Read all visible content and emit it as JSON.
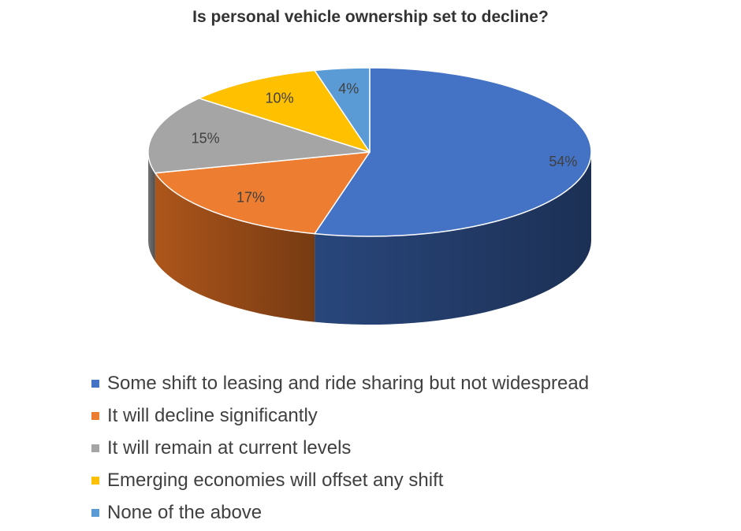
{
  "chart_data": {
    "type": "pie",
    "title": "Is personal vehicle ownership set to decline?",
    "style": "3d",
    "legend_position": "bottom",
    "slices": [
      {
        "label": "Some shift to leasing and ride sharing but not widespread",
        "value": 54,
        "display": "54%",
        "color": "#4472C4",
        "side_color": "#2B4A82"
      },
      {
        "label": "It will decline significantly",
        "value": 17,
        "display": "17%",
        "color": "#ED7D31",
        "side_color": "#B65A1C"
      },
      {
        "label": "It will remain at current levels",
        "value": 15,
        "display": "15%",
        "color": "#A5A5A5",
        "side_color": "#7A7A7A"
      },
      {
        "label": "Emerging economies will offset any shift",
        "value": 10,
        "display": "10%",
        "color": "#FFC000",
        "side_color": "#C09000"
      },
      {
        "label": "None of the above",
        "value": 4,
        "display": "4%",
        "color": "#5B9BD5",
        "side_color": "#3D75A8"
      }
    ]
  }
}
